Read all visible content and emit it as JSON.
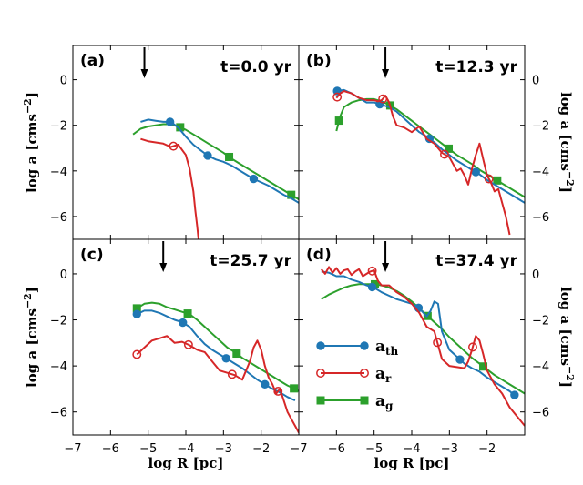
{
  "chart_data": {
    "type": "line",
    "xlabel": "log R [pc]",
    "ylabel": "log a [cms",
    "ylabel_sup": "−2",
    "ylabel_close": "]",
    "xlim": [
      -7,
      -1
    ],
    "ylim": [
      -7,
      1.5
    ],
    "yticks": [
      -6,
      -4,
      -2,
      0
    ],
    "ytick_labels": [
      "−6",
      "−4",
      "−2",
      "0"
    ],
    "xticks_left": [
      -7,
      -6,
      -5,
      -4,
      -3,
      -2
    ],
    "xticks_left_labels": [
      "−7",
      "−6",
      "−5",
      "−4",
      "−3",
      "−2"
    ],
    "xticks_right": [
      -7,
      -6,
      -5,
      -4,
      -3,
      -2
    ],
    "xticks_right_labels": [
      "−7",
      "−6",
      "−5",
      "−4",
      "−3",
      "−2"
    ],
    "colors": {
      "a_th": "#1f77b4",
      "a_r": "#d62728",
      "a_g": "#2ca02c"
    },
    "legend": [
      {
        "key": "a_th",
        "base": "a",
        "sub": "th",
        "marker": "filled-circle"
      },
      {
        "key": "a_r",
        "base": "a",
        "sub": "r",
        "marker": "open-circle"
      },
      {
        "key": "a_g",
        "base": "a",
        "sub": "g",
        "marker": "filled-square"
      }
    ],
    "panels": [
      {
        "id": "a",
        "label": "(a)",
        "time": "t=0.0 yr",
        "arrow_x": -5.1,
        "series": {
          "a_th": {
            "x": [
              -5.2,
              -5.0,
              -4.8,
              -4.6,
              -4.4,
              -4.2,
              -4.0,
              -3.8,
              -3.6,
              -3.4,
              -3.2,
              -3.0,
              -2.8,
              -2.6,
              -2.4,
              -2.2,
              -2.0,
              -1.8,
              -1.6,
              -1.4,
              -1.2,
              -1.0
            ],
            "y": [
              -1.85,
              -1.75,
              -1.8,
              -1.85,
              -1.85,
              -2.1,
              -2.5,
              -2.85,
              -3.1,
              -3.35,
              -3.5,
              -3.6,
              -3.75,
              -3.95,
              -4.15,
              -4.35,
              -4.5,
              -4.65,
              -4.85,
              -5.05,
              -5.2,
              -5.4
            ],
            "markers_x": [
              -4.42,
              -3.42,
              -2.2
            ]
          },
          "a_r": {
            "x": [
              -5.2,
              -5.0,
              -4.8,
              -4.6,
              -4.4,
              -4.2,
              -4.0,
              -3.9,
              -3.8,
              -3.75,
              -3.7,
              -3.65
            ],
            "y": [
              -2.6,
              -2.7,
              -2.75,
              -2.8,
              -2.95,
              -2.85,
              -3.3,
              -3.9,
              -4.9,
              -5.7,
              -6.4,
              -7.2
            ],
            "markers_x": [
              -4.33
            ]
          },
          "a_g": {
            "x": [
              -5.4,
              -5.2,
              -5.0,
              -4.8,
              -4.6,
              -4.4,
              -4.2,
              -4.0,
              -3.8,
              -3.6,
              -3.4,
              -3.2,
              -3.0,
              -2.8,
              -2.6,
              -2.4,
              -2.2,
              -2.0,
              -1.8,
              -1.6,
              -1.4,
              -1.2,
              -1.0
            ],
            "y": [
              -2.4,
              -2.15,
              -2.05,
              -2.0,
              -1.95,
              -1.95,
              -2.05,
              -2.2,
              -2.4,
              -2.6,
              -2.8,
              -3.0,
              -3.2,
              -3.45,
              -3.65,
              -3.85,
              -4.05,
              -4.25,
              -4.45,
              -4.65,
              -4.85,
              -5.05,
              -5.25
            ],
            "markers_x": [
              -4.15,
              -2.85,
              -1.2
            ]
          }
        }
      },
      {
        "id": "b",
        "label": "(b)",
        "time": "t=12.3 yr",
        "arrow_x": -4.7,
        "series": {
          "a_th": {
            "x": [
              -6.0,
              -5.8,
              -5.6,
              -5.4,
              -5.2,
              -5.0,
              -4.8,
              -4.6,
              -4.4,
              -4.2,
              -4.0,
              -3.8,
              -3.6,
              -3.4,
              -3.2,
              -3.0,
              -2.8,
              -2.6,
              -2.4,
              -2.2,
              -2.0,
              -1.8,
              -1.6,
              -1.4,
              -1.2,
              -1.0
            ],
            "y": [
              -0.5,
              -0.45,
              -0.6,
              -0.8,
              -1.0,
              -1.0,
              -1.1,
              -1.2,
              -1.4,
              -1.7,
              -2.0,
              -2.3,
              -2.5,
              -2.75,
              -3.05,
              -3.3,
              -3.55,
              -3.75,
              -3.95,
              -4.15,
              -4.4,
              -4.6,
              -4.8,
              -5.0,
              -5.2,
              -5.4
            ],
            "markers_x": [
              -5.98,
              -4.85,
              -3.53,
              -2.3
            ]
          },
          "a_r": {
            "x": [
              -6.0,
              -5.9,
              -5.8,
              -5.6,
              -5.4,
              -5.2,
              -5.0,
              -4.9,
              -4.8,
              -4.7,
              -4.6,
              -4.5,
              -4.4,
              -4.2,
              -4.0,
              -3.8,
              -3.6,
              -3.4,
              -3.2,
              -3.0,
              -2.8,
              -2.7,
              -2.6,
              -2.5,
              -2.4,
              -2.3,
              -2.2,
              -2.1,
              -2.0,
              -1.9,
              -1.8,
              -1.7,
              -1.6,
              -1.5,
              -1.4
            ],
            "y": [
              -0.8,
              -0.6,
              -0.5,
              -0.6,
              -0.8,
              -0.9,
              -0.9,
              -0.95,
              -0.9,
              -0.7,
              -1.0,
              -1.6,
              -2.0,
              -2.1,
              -2.3,
              -2.05,
              -2.6,
              -2.8,
              -3.2,
              -3.4,
              -4.0,
              -3.9,
              -4.2,
              -4.6,
              -3.9,
              -3.3,
              -2.8,
              -3.5,
              -4.2,
              -4.5,
              -4.9,
              -4.8,
              -5.4,
              -6.0,
              -6.8
            ],
            "markers_x": [
              -5.98,
              -4.77,
              -3.13,
              -1.95
            ]
          },
          "a_g": {
            "x": [
              -6.0,
              -5.9,
              -5.8,
              -5.6,
              -5.4,
              -5.2,
              -5.0,
              -4.8,
              -4.6,
              -4.4,
              -4.2,
              -4.0,
              -3.8,
              -3.6,
              -3.4,
              -3.2,
              -3.0,
              -2.8,
              -2.6,
              -2.4,
              -2.2,
              -2.0,
              -1.8,
              -1.6,
              -1.4,
              -1.2,
              -1.0
            ],
            "y": [
              -2.25,
              -1.6,
              -1.2,
              -1.0,
              -0.9,
              -0.85,
              -0.85,
              -0.95,
              -1.1,
              -1.3,
              -1.55,
              -1.8,
              -2.05,
              -2.3,
              -2.55,
              -2.8,
              -3.05,
              -3.3,
              -3.5,
              -3.7,
              -3.95,
              -4.15,
              -4.35,
              -4.55,
              -4.75,
              -4.95,
              -5.15
            ],
            "markers_x": [
              -5.93,
              -4.57,
              -3.02,
              -1.73
            ]
          }
        }
      },
      {
        "id": "c",
        "label": "(c)",
        "time": "t=25.7 yr",
        "arrow_x": -4.6,
        "series": {
          "a_th": {
            "x": [
              -5.3,
              -5.1,
              -4.9,
              -4.7,
              -4.5,
              -4.3,
              -4.1,
              -3.9,
              -3.7,
              -3.5,
              -3.3,
              -3.1,
              -2.9,
              -2.7,
              -2.5,
              -2.3,
              -2.1,
              -1.9,
              -1.7,
              -1.5,
              -1.3,
              -1.1
            ],
            "y": [
              -1.75,
              -1.6,
              -1.6,
              -1.7,
              -1.85,
              -2.0,
              -2.1,
              -2.3,
              -2.7,
              -3.05,
              -3.3,
              -3.5,
              -3.7,
              -3.9,
              -4.1,
              -4.35,
              -4.6,
              -4.8,
              -5.0,
              -5.15,
              -5.35,
              -5.5
            ],
            "markers_x": [
              -5.3,
              -4.08,
              -2.93,
              -1.9
            ]
          },
          "a_r": {
            "x": [
              -5.3,
              -5.1,
              -4.9,
              -4.7,
              -4.5,
              -4.3,
              -4.1,
              -3.9,
              -3.7,
              -3.5,
              -3.3,
              -3.1,
              -2.9,
              -2.7,
              -2.5,
              -2.3,
              -2.2,
              -2.1,
              -2.0,
              -1.9,
              -1.8,
              -1.7,
              -1.6,
              -1.5,
              -1.4,
              -1.3,
              -1.2,
              -1.1,
              -1.0
            ],
            "y": [
              -3.5,
              -3.2,
              -2.9,
              -2.8,
              -2.7,
              -3.0,
              -2.95,
              -3.1,
              -3.3,
              -3.4,
              -3.8,
              -4.2,
              -4.3,
              -4.4,
              -4.6,
              -3.8,
              -3.2,
              -2.9,
              -3.3,
              -4.0,
              -4.5,
              -4.8,
              -5.2,
              -5.0,
              -5.5,
              -6.0,
              -6.3,
              -6.6,
              -6.9
            ],
            "markers_x": [
              -5.3,
              -3.93,
              -2.77,
              -1.55
            ]
          },
          "a_g": {
            "x": [
              -5.3,
              -5.1,
              -4.9,
              -4.7,
              -4.5,
              -4.3,
              -4.1,
              -3.9,
              -3.7,
              -3.5,
              -3.3,
              -3.1,
              -2.9,
              -2.7,
              -2.5,
              -2.3,
              -2.1,
              -1.9,
              -1.7,
              -1.5,
              -1.3,
              -1.1,
              -1.0
            ],
            "y": [
              -1.5,
              -1.3,
              -1.25,
              -1.3,
              -1.45,
              -1.55,
              -1.65,
              -1.75,
              -2.0,
              -2.3,
              -2.6,
              -2.9,
              -3.2,
              -3.4,
              -3.65,
              -3.85,
              -4.05,
              -4.25,
              -4.45,
              -4.65,
              -4.85,
              -5.0,
              -5.1
            ],
            "markers_x": [
              -5.3,
              -3.95,
              -2.65,
              -1.13
            ]
          }
        }
      },
      {
        "id": "d",
        "label": "(d)",
        "time": "t=37.4 yr",
        "arrow_x": -4.7,
        "series": {
          "a_th": {
            "x": [
              -6.4,
              -6.2,
              -6.0,
              -5.8,
              -5.6,
              -5.4,
              -5.2,
              -5.0,
              -4.8,
              -4.6,
              -4.4,
              -4.2,
              -4.0,
              -3.8,
              -3.6,
              -3.5,
              -3.4,
              -3.3,
              -3.2,
              -3.0,
              -2.8,
              -2.6,
              -2.4,
              -2.2,
              -2.0,
              -1.8,
              -1.6,
              -1.4,
              -1.2
            ],
            "y": [
              0.1,
              0.05,
              -0.1,
              -0.1,
              -0.25,
              -0.35,
              -0.5,
              -0.6,
              -0.8,
              -0.95,
              -1.1,
              -1.2,
              -1.3,
              -1.5,
              -1.85,
              -1.6,
              -1.2,
              -1.3,
              -2.5,
              -3.3,
              -3.6,
              -3.9,
              -4.1,
              -4.25,
              -4.5,
              -4.7,
              -4.9,
              -5.1,
              -5.35
            ],
            "markers_x": [
              -5.05,
              -3.82,
              -2.72,
              -1.27
            ]
          },
          "a_r": {
            "x": [
              -6.4,
              -6.3,
              -6.2,
              -6.1,
              -6.0,
              -5.9,
              -5.8,
              -5.7,
              -5.6,
              -5.5,
              -5.4,
              -5.3,
              -5.2,
              -5.1,
              -5.0,
              -4.9,
              -4.8,
              -4.6,
              -4.4,
              -4.2,
              -4.0,
              -3.8,
              -3.6,
              -3.4,
              -3.2,
              -3.0,
              -2.8,
              -2.6,
              -2.5,
              -2.4,
              -2.3,
              -2.2,
              -2.1,
              -2.0,
              -1.9,
              -1.8,
              -1.6,
              -1.4,
              -1.2,
              -1.0
            ],
            "y": [
              0.2,
              0.0,
              0.3,
              0.05,
              0.25,
              0.0,
              0.15,
              0.2,
              -0.05,
              0.1,
              0.2,
              -0.1,
              0.0,
              0.1,
              0.15,
              -0.3,
              -0.5,
              -0.5,
              -0.8,
              -1.0,
              -1.3,
              -1.7,
              -2.3,
              -2.5,
              -3.7,
              -4.0,
              -4.05,
              -4.1,
              -3.8,
              -3.3,
              -2.7,
              -2.9,
              -3.5,
              -4.2,
              -4.5,
              -4.8,
              -5.2,
              -5.8,
              -6.2,
              -6.6
            ],
            "markers_x": [
              -5.05,
              -3.32,
              -2.38
            ]
          },
          "a_g": {
            "x": [
              -6.4,
              -6.2,
              -6.0,
              -5.8,
              -5.6,
              -5.4,
              -5.2,
              -5.0,
              -4.8,
              -4.6,
              -4.4,
              -4.2,
              -4.0,
              -3.8,
              -3.6,
              -3.4,
              -3.2,
              -3.0,
              -2.8,
              -2.6,
              -2.4,
              -2.2,
              -2.0,
              -1.8,
              -1.6,
              -1.4,
              -1.2,
              -1.0
            ],
            "y": [
              -1.1,
              -0.9,
              -0.75,
              -0.6,
              -0.5,
              -0.45,
              -0.45,
              -0.45,
              -0.5,
              -0.6,
              -0.75,
              -0.95,
              -1.2,
              -1.5,
              -1.8,
              -2.1,
              -2.4,
              -2.75,
              -3.05,
              -3.35,
              -3.65,
              -3.9,
              -4.15,
              -4.4,
              -4.6,
              -4.8,
              -5.0,
              -5.2
            ],
            "markers_x": [
              -4.98,
              -3.58,
              -2.1
            ]
          }
        }
      }
    ]
  }
}
